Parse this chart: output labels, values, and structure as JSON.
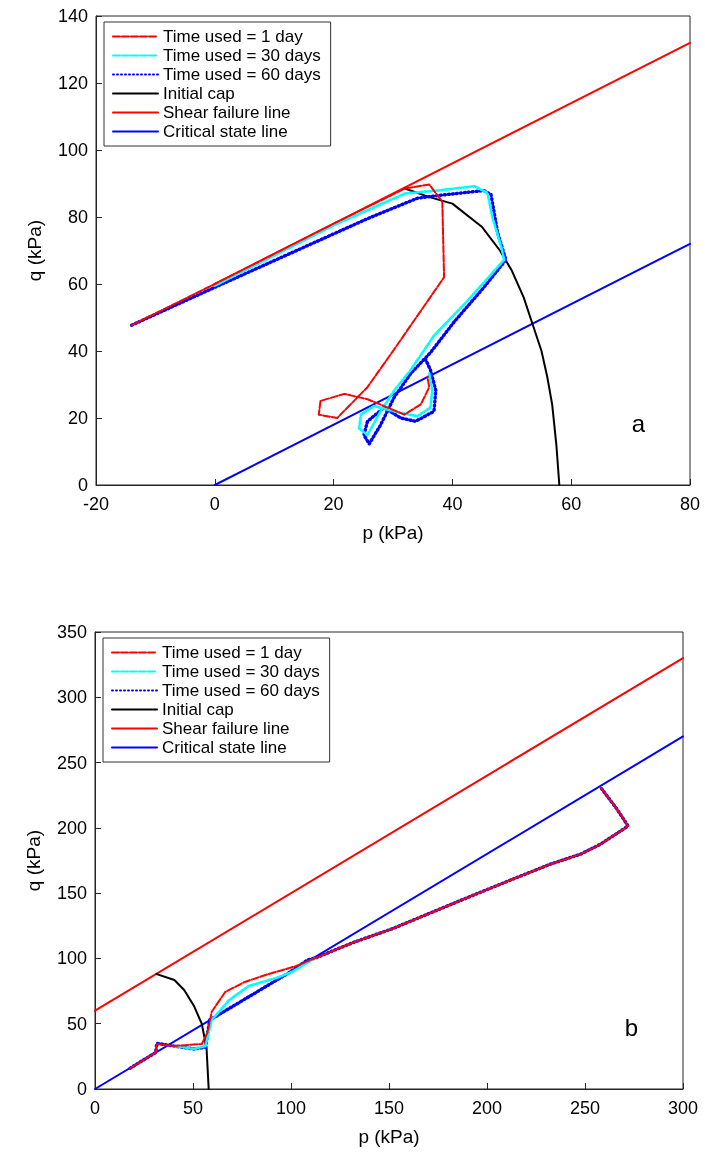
{
  "chart_data": [
    {
      "type": "line",
      "xlabel": "p (kPa)",
      "ylabel": "q (kPa)",
      "annotations": [
        "a"
      ],
      "xlim": [
        -20,
        80
      ],
      "ylim": [
        0,
        140
      ],
      "xticks": [
        -20,
        0,
        20,
        40,
        60,
        80
      ],
      "yticks": [
        0,
        20,
        40,
        60,
        80,
        100,
        120,
        140
      ],
      "grid": false,
      "legend": "top left",
      "marker": "none",
      "series": [
        {
          "name": "Time used = 1 day",
          "color": "#ff0000",
          "line_style": "dashed",
          "x": [
            -14,
            0,
            20,
            32,
            36.1,
            38.3,
            38.6,
            30,
            25.7,
            20.6,
            17.5,
            17.8,
            21.8,
            25.7,
            29.1,
            31.9,
            34.7,
            36.1,
            35.8
          ],
          "values": [
            47.7,
            60,
            78,
            88.5,
            89.7,
            84.6,
            62,
            40,
            29.2,
            20,
            21,
            25.1,
            27.2,
            25.6,
            23.1,
            21,
            24.1,
            29.2,
            32.3
          ]
        },
        {
          "name": "Time used = 30 days",
          "color": "#00ffff",
          "line_style": "dashed",
          "x": [
            0,
            20,
            32,
            38,
            43.7,
            45.9,
            46.8,
            48.2,
            48.7,
            42.5,
            36.9,
            33,
            30.2,
            27.9,
            25.7,
            24.3,
            24.6,
            26.8,
            30.2,
            34.1,
            36.3,
            36.6,
            36.1
          ],
          "values": [
            59.5,
            77.5,
            87,
            88,
            89.2,
            87.2,
            79.5,
            71.3,
            67.2,
            54.9,
            44.6,
            34.4,
            28.2,
            22,
            14.9,
            16.9,
            21,
            23.6,
            22,
            20.5,
            23.1,
            28.2,
            33.3
          ]
        },
        {
          "name": "Time used = 60 days",
          "color": "#0000ff",
          "line_style": "dotted",
          "x": [
            -14,
            0,
            25.7,
            34.1,
            38,
            45.3,
            46.5,
            47.6,
            49,
            45.3,
            40.3,
            36.3,
            33,
            30.2,
            27.9,
            26,
            25.1,
            25.7,
            28.5,
            31.3,
            33.8,
            36.9,
            37.2,
            36.3,
            35.5
          ],
          "values": [
            47.7,
            59,
            79.5,
            85.6,
            86.5,
            87.9,
            86.7,
            75.4,
            67.2,
            59,
            48.7,
            39.5,
            33.3,
            26.2,
            17.9,
            12.3,
            14.9,
            19,
            23.1,
            20,
            19,
            22,
            28.2,
            34.4,
            37.4
          ]
        },
        {
          "name": "Initial cap",
          "color": "#000000",
          "line_style": "solid",
          "x": [
            32,
            36,
            40,
            45,
            48,
            50,
            52,
            53.5,
            55,
            56,
            56.8,
            57.5,
            58
          ],
          "values": [
            88.5,
            86,
            84,
            77,
            70,
            64,
            56,
            48,
            40,
            32,
            24,
            12,
            0
          ]
        },
        {
          "name": "Shear failure line",
          "color": "#ff0000",
          "line_style": "solid",
          "x": [
            0,
            80
          ],
          "values": [
            60,
            132
          ]
        },
        {
          "name": "Critical state line",
          "color": "#0000ff",
          "line_style": "solid",
          "x": [
            0,
            80
          ],
          "values": [
            0,
            72
          ]
        }
      ]
    },
    {
      "type": "line",
      "xlabel": "p (kPa)",
      "ylabel": "q (kPa)",
      "annotations": [
        "b"
      ],
      "xlim": [
        0,
        300
      ],
      "ylim": [
        0,
        350
      ],
      "xticks": [
        0,
        50,
        100,
        150,
        200,
        250,
        300
      ],
      "yticks": [
        0,
        50,
        100,
        150,
        200,
        250,
        300,
        350
      ],
      "grid": false,
      "legend": "top left",
      "marker": "none",
      "series": [
        {
          "name": "Time used = 1 day",
          "color": "#ff0000",
          "line_style": "dashed",
          "x": [
            18,
            31,
            31.5,
            40.5,
            54.5,
            57.5,
            59.5,
            66.4,
            76.4,
            88.4,
            102.4,
            112.4,
            132.3,
            152.2,
            172.2,
            192,
            212,
            232,
            248,
            258,
            272,
            266,
            258.2
          ],
          "values": [
            16,
            28,
            34.5,
            33,
            34.5,
            43.6,
            59,
            74.3,
            82,
            88,
            94,
            100.3,
            112.5,
            123,
            135.5,
            147.8,
            160,
            172,
            180,
            187.6,
            201.4,
            215,
            230.5
          ]
        },
        {
          "name": "Time used = 30 days",
          "color": "#00ffff",
          "line_style": "dashed",
          "x": [
            40.5,
            50.5,
            56.4,
            59.5,
            68.4,
            78.4,
            92.4,
            100.3,
            112.4
          ],
          "values": [
            33,
            30.6,
            33,
            52.8,
            68,
            78.9,
            85,
            89.6,
            100.3
          ]
        },
        {
          "name": "Time used = 60 days",
          "color": "#0000ff",
          "line_style": "dotted",
          "x": [
            18,
            31,
            31.5,
            40,
            50.5,
            56.4,
            58.5,
            80,
            100,
            108.4,
            112.4,
            132.3,
            152.2,
            172.2,
            192,
            212,
            232,
            248,
            258,
            272,
            266,
            258.2
          ],
          "values": [
            16,
            28,
            35,
            33,
            30.6,
            32,
            52.8,
            72,
            90,
            98.8,
            100.3,
            112.5,
            123,
            135.5,
            147.8,
            160,
            172,
            180,
            187.6,
            201.4,
            215,
            230.5
          ]
        },
        {
          "name": "Initial cap",
          "color": "#000000",
          "line_style": "solid",
          "x": [
            31.5,
            40.5,
            45.5,
            50.5,
            54.5,
            56.9,
            58
          ],
          "values": [
            88,
            83.5,
            75.8,
            63.6,
            49.8,
            31.4,
            0
          ]
        },
        {
          "name": "Shear failure line",
          "color": "#ff0000",
          "line_style": "solid",
          "x": [
            0,
            300
          ],
          "values": [
            60,
            330
          ]
        },
        {
          "name": "Critical state line",
          "color": "#0000ff",
          "line_style": "solid",
          "x": [
            0,
            300
          ],
          "values": [
            0,
            270
          ]
        }
      ]
    }
  ]
}
